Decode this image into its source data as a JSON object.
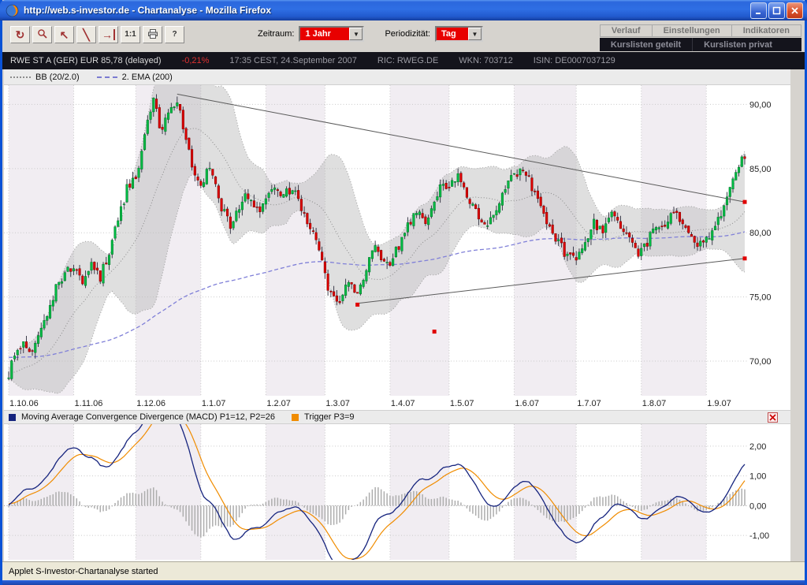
{
  "window": {
    "title": "http://web.s-investor.de - Chartanalyse - Mozilla Firefox"
  },
  "toolbar": {
    "buttons": [
      {
        "name": "refresh-button",
        "icon": "refresh-icon",
        "glyph": "↻"
      },
      {
        "name": "zoom-button",
        "icon": "magnifier-icon"
      },
      {
        "name": "reset-view-button",
        "icon": "reset-view-icon",
        "glyph": "↖"
      },
      {
        "name": "trendline-button",
        "icon": "trendline-icon",
        "glyph": "╲"
      },
      {
        "name": "goto-end-button",
        "icon": "goto-end-icon",
        "glyph": "→",
        "bar": true
      },
      {
        "name": "scale-1-1-button",
        "icon": "one-to-one-icon",
        "glyph": "1:1",
        "small": true
      },
      {
        "name": "print-button",
        "icon": "printer-icon"
      },
      {
        "name": "help-button",
        "icon": "help-icon",
        "glyph": "?",
        "small": true
      }
    ],
    "zeitraum_label": "Zeitraum:",
    "zeitraum_value": "1 Jahr",
    "periodizitaet_label": "Periodizität:",
    "periodizitaet_value": "Tag",
    "tabs_top": [
      "Verlauf",
      "Einstellungen",
      "Indikatoren"
    ],
    "tabs_bottom": [
      "Kurslisten geteilt",
      "Kurslisten privat"
    ]
  },
  "infobar": {
    "instrument": "RWE ST A  (GER) EUR 85,78 (delayed)",
    "change": "-0,21%",
    "timestamp": "17:35 CEST, 24.September 2007",
    "ric": "RIC: RWEG.DE",
    "wkn": "WKN: 703712",
    "isin": "ISIN: DE0007037129"
  },
  "statusbar": {
    "text": "Applet S-Investor-Chartanalyse started"
  },
  "chart_data": [
    {
      "type": "candlestick",
      "series_name": "RWE ST A",
      "last_close": 85.78,
      "days_total": 250,
      "warmup_days": 20,
      "noise_seed": 1234,
      "x_labels": [
        "1.10.06",
        "1.11.06",
        "1.12.06",
        "1.1.07",
        "1.2.07",
        "1.3.07",
        "1.4.07",
        "1.5.07",
        "1.6.07",
        "1.7.07",
        "1.8.07",
        "1.9.07"
      ],
      "month_starts": [
        0,
        22,
        43,
        65,
        87,
        107,
        129,
        149,
        171,
        192,
        214,
        236
      ],
      "y_ticks": [
        90,
        85,
        80,
        75,
        70
      ],
      "y_tick_labels": [
        "90,00",
        "85,00",
        "80,00",
        "75,00",
        "70,00"
      ],
      "ylim": [
        67.3,
        91.5
      ],
      "close_anchors": [
        [
          0,
          69.0
        ],
        [
          2,
          70.3
        ],
        [
          5,
          71.4
        ],
        [
          7,
          70.4
        ],
        [
          10,
          72.0
        ],
        [
          13,
          73.6
        ],
        [
          16,
          75.6
        ],
        [
          19,
          76.8
        ],
        [
          22,
          77.2
        ],
        [
          25,
          76.2
        ],
        [
          28,
          77.6
        ],
        [
          31,
          76.6
        ],
        [
          34,
          78.6
        ],
        [
          37,
          81.0
        ],
        [
          40,
          83.4
        ],
        [
          43,
          84.2
        ],
        [
          45,
          86.4
        ],
        [
          47,
          88.4
        ],
        [
          49,
          90.6
        ],
        [
          51,
          88.2
        ],
        [
          53,
          88.6
        ],
        [
          55,
          89.4
        ],
        [
          57,
          90.2
        ],
        [
          59,
          88.4
        ],
        [
          61,
          86.2
        ],
        [
          63,
          84.2
        ],
        [
          65,
          83.4
        ],
        [
          67,
          85.2
        ],
        [
          69,
          84.2
        ],
        [
          72,
          82.0
        ],
        [
          75,
          80.4
        ],
        [
          78,
          82.2
        ],
        [
          81,
          83.0
        ],
        [
          84,
          81.6
        ],
        [
          87,
          82.6
        ],
        [
          90,
          83.8
        ],
        [
          93,
          82.8
        ],
        [
          96,
          83.6
        ],
        [
          99,
          82.0
        ],
        [
          102,
          80.6
        ],
        [
          105,
          78.6
        ],
        [
          107,
          76.6
        ],
        [
          109,
          75.2
        ],
        [
          112,
          74.4
        ],
        [
          115,
          76.2
        ],
        [
          118,
          75.0
        ],
        [
          121,
          77.4
        ],
        [
          124,
          78.8
        ],
        [
          127,
          77.8
        ],
        [
          129,
          77.6
        ],
        [
          132,
          79.0
        ],
        [
          135,
          80.6
        ],
        [
          138,
          81.8
        ],
        [
          141,
          81.0
        ],
        [
          144,
          82.6
        ],
        [
          147,
          83.8
        ],
        [
          149,
          83.6
        ],
        [
          152,
          84.4
        ],
        [
          155,
          83.0
        ],
        [
          158,
          81.8
        ],
        [
          161,
          80.4
        ],
        [
          164,
          81.6
        ],
        [
          167,
          83.0
        ],
        [
          170,
          84.4
        ],
        [
          174,
          85.0
        ],
        [
          177,
          83.6
        ],
        [
          180,
          82.0
        ],
        [
          183,
          80.6
        ],
        [
          186,
          79.2
        ],
        [
          189,
          78.2
        ],
        [
          192,
          77.8
        ],
        [
          195,
          79.4
        ],
        [
          198,
          80.8
        ],
        [
          201,
          80.0
        ],
        [
          204,
          81.4
        ],
        [
          207,
          80.4
        ],
        [
          210,
          79.4
        ],
        [
          213,
          78.4
        ],
        [
          216,
          79.2
        ],
        [
          219,
          80.8
        ],
        [
          222,
          80.2
        ],
        [
          225,
          81.6
        ],
        [
          228,
          80.8
        ],
        [
          231,
          79.6
        ],
        [
          234,
          79.0
        ],
        [
          236,
          79.4
        ],
        [
          239,
          80.6
        ],
        [
          242,
          82.0
        ],
        [
          245,
          84.0
        ],
        [
          247,
          85.4
        ],
        [
          249,
          85.78
        ]
      ],
      "overlays": {
        "bollinger": {
          "label": "BB (20/2.0)",
          "period": 20,
          "stddev": 2.0
        },
        "ema": {
          "label": "2. EMA (200)",
          "period": 200,
          "seed": 70.6,
          "color": "#8080d8"
        }
      },
      "trendlines": [
        {
          "d1": 57,
          "p1": 90.8,
          "d2": 249,
          "p2": 82.4
        },
        {
          "d1": 118,
          "p1": 74.5,
          "d2": 249,
          "p2": 78.0
        }
      ],
      "markers": [
        [
          118,
          74.4
        ],
        [
          144,
          72.3
        ],
        [
          249,
          82.4
        ],
        [
          249,
          78.0
        ]
      ],
      "stripe_color": "#f1edf2",
      "band_fill": "#b9b9b9",
      "up_color": "#00bb44",
      "down_color": "#dd0000",
      "marker_color": "#e00000"
    },
    {
      "type": "macd",
      "label_macd": "Moving Average Convergence Divergence (MACD) P1=12, P2=26",
      "label_trigger": "Trigger P3=9",
      "params": {
        "p1": 12,
        "p2": 26,
        "p3": 9
      },
      "y_ticks": [
        2,
        1,
        0,
        -1
      ],
      "y_tick_labels": [
        "2,00",
        "1,00",
        "0,00",
        "-1,00"
      ],
      "ylim": [
        -1.82,
        2.74
      ],
      "macd_color": "#16247e",
      "trigger_color": "#f08c00",
      "hist_color": "#adadad"
    }
  ]
}
